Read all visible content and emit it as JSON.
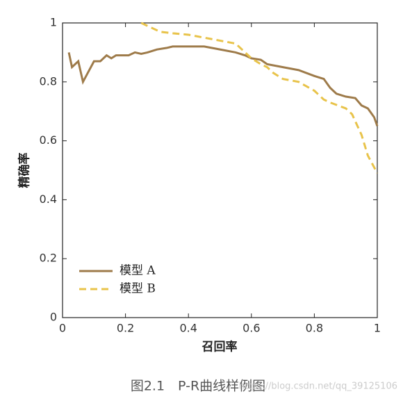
{
  "chart_data": {
    "type": "line",
    "xlabel": "召回率",
    "ylabel": "精确率",
    "caption": "图2.1　P-R曲线样例图",
    "watermark": "https://blog.csdn.net/qq_39125106",
    "xlim": [
      0,
      1
    ],
    "ylim": [
      0,
      1
    ],
    "xticks": [
      0,
      0.2,
      0.4,
      0.6,
      0.8,
      1
    ],
    "yticks": [
      0,
      0.2,
      0.4,
      0.6,
      0.8,
      1
    ],
    "legend": "lower left",
    "series": [
      {
        "name": "模型 A",
        "color": "#9e7b4a",
        "dash": "solid",
        "x": [
          0.02,
          0.03,
          0.05,
          0.065,
          0.08,
          0.1,
          0.12,
          0.14,
          0.155,
          0.17,
          0.21,
          0.23,
          0.25,
          0.27,
          0.3,
          0.33,
          0.35,
          0.4,
          0.45,
          0.5,
          0.55,
          0.58,
          0.6,
          0.63,
          0.65,
          0.7,
          0.75,
          0.8,
          0.83,
          0.85,
          0.87,
          0.9,
          0.93,
          0.95,
          0.97,
          0.99,
          1.0
        ],
        "values": [
          0.9,
          0.85,
          0.87,
          0.8,
          0.83,
          0.87,
          0.87,
          0.89,
          0.88,
          0.89,
          0.89,
          0.9,
          0.895,
          0.9,
          0.91,
          0.915,
          0.92,
          0.92,
          0.92,
          0.91,
          0.9,
          0.89,
          0.88,
          0.875,
          0.86,
          0.85,
          0.84,
          0.82,
          0.81,
          0.78,
          0.76,
          0.75,
          0.745,
          0.72,
          0.71,
          0.68,
          0.65
        ]
      },
      {
        "name": "模型 B",
        "color": "#e8c34a",
        "dash": "dashed",
        "x": [
          0.25,
          0.27,
          0.29,
          0.31,
          0.35,
          0.4,
          0.45,
          0.5,
          0.55,
          0.57,
          0.58,
          0.6,
          0.63,
          0.65,
          0.67,
          0.7,
          0.75,
          0.8,
          0.83,
          0.85,
          0.9,
          0.92,
          0.95,
          0.97,
          0.98,
          1.0
        ],
        "values": [
          1.0,
          0.99,
          0.98,
          0.97,
          0.965,
          0.96,
          0.95,
          0.94,
          0.93,
          0.91,
          0.9,
          0.88,
          0.86,
          0.85,
          0.83,
          0.81,
          0.8,
          0.77,
          0.74,
          0.73,
          0.71,
          0.69,
          0.62,
          0.55,
          0.53,
          0.49
        ]
      }
    ]
  }
}
